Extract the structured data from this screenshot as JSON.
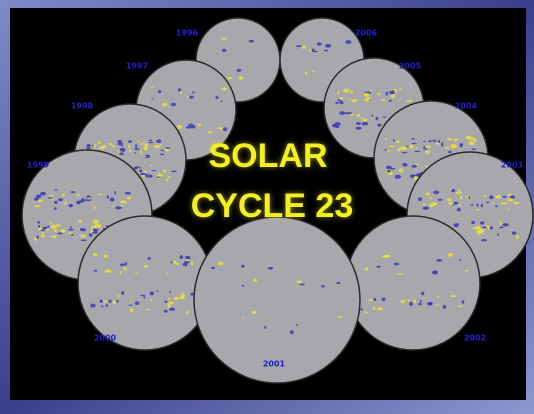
{
  "title": {
    "line1": "SOLAR",
    "line2": "CYCLE 23"
  },
  "years": [
    "1996",
    "1997",
    "1998",
    "1999",
    "2000",
    "2001",
    "2002",
    "2003",
    "2004",
    "2005",
    "2006"
  ]
}
